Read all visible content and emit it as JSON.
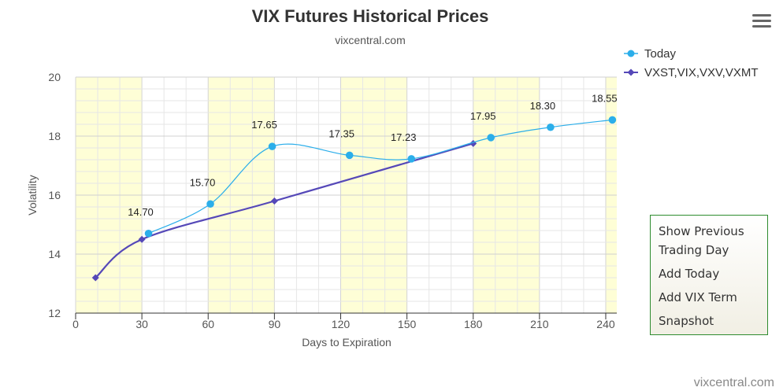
{
  "chart_data": {
    "type": "line",
    "title": "VIX Futures Historical Prices",
    "subtitle": "vixcentral.com",
    "xlabel": "Days to Expiration",
    "ylabel": "Volatility",
    "xlim": [
      0,
      245
    ],
    "ylim": [
      12,
      20
    ],
    "x_ticks": [
      0,
      30,
      60,
      90,
      120,
      150,
      180,
      210,
      240
    ],
    "y_ticks": [
      12,
      14,
      16,
      18,
      20
    ],
    "shaded_bands": [
      [
        0,
        30
      ],
      [
        60,
        90
      ],
      [
        120,
        150
      ],
      [
        180,
        210
      ],
      [
        240,
        245
      ]
    ],
    "grid": true,
    "legend_position": "top-right",
    "series": [
      {
        "name": "Today",
        "color": "#2baeea",
        "marker": "circle",
        "show_labels": true,
        "x": [
          33,
          61,
          89,
          124,
          152,
          188,
          215,
          243
        ],
        "y": [
          14.7,
          15.7,
          17.65,
          17.35,
          17.23,
          17.95,
          18.3,
          18.55
        ],
        "labels": [
          "14.70",
          "15.70",
          "17.65",
          "17.35",
          "17.23",
          "17.95",
          "18.30",
          "18.55"
        ]
      },
      {
        "name": "VXST,VIX,VXV,VXMT",
        "color": "#5548b8",
        "marker": "diamond",
        "show_labels": false,
        "x": [
          9,
          30,
          90,
          180
        ],
        "y": [
          13.2,
          14.5,
          15.8,
          17.75
        ]
      }
    ]
  },
  "menu": {
    "icon": "hamburger-menu-icon"
  },
  "actions": {
    "items": [
      {
        "label_line1": "Show Previous",
        "label_line2": "Trading Day"
      },
      {
        "label_line1": "Add Today",
        "label_line2": ""
      },
      {
        "label_line1": "Add VIX Term",
        "label_line2": ""
      },
      {
        "label_line1": "Snapshot",
        "label_line2": ""
      }
    ]
  },
  "credit": "vixcentral.com"
}
